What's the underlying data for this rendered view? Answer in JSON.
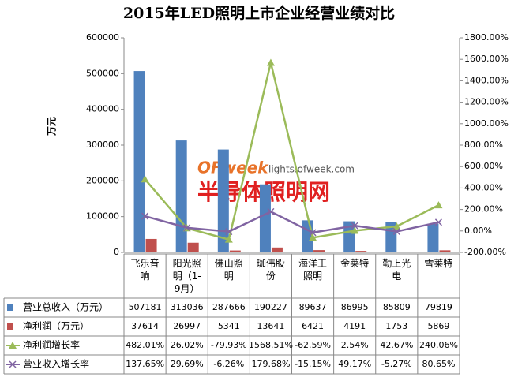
{
  "chart_data": {
    "type": "bar",
    "title": "2015年LED照明上市企业经营业绩对比",
    "y_label": "万元",
    "categories": [
      "飞乐音响",
      "阳光照明（1-9月）",
      "佛山照明",
      "珈伟股份",
      "海洋王照明",
      "金莱特",
      "勤上光电",
      "雪莱特"
    ],
    "series": [
      {
        "name": "营业总收入（万元）",
        "type": "bar",
        "color": "#4f81bd",
        "values": [
          507181,
          313036,
          287666,
          190227,
          89637,
          86995,
          85809,
          79819
        ]
      },
      {
        "name": "净利润（万元）",
        "type": "bar",
        "color": "#c0504d",
        "values": [
          37614,
          26997,
          5341,
          13641,
          6421,
          4191,
          1753,
          5869
        ]
      },
      {
        "name": "净利润增长率",
        "type": "line",
        "marker": "triangle",
        "axis": "y2",
        "color": "#9bbb59",
        "values": [
          482.01,
          26.02,
          -79.93,
          1568.51,
          -62.59,
          2.54,
          42.67,
          240.06
        ],
        "value_labels": [
          "482.01%",
          "26.02%",
          "-79.93%",
          "1568.51%",
          "-62.59%",
          "2.54%",
          "42.67%",
          "240.06%"
        ]
      },
      {
        "name": "营业收入增长率",
        "type": "line",
        "marker": "x",
        "axis": "y2",
        "color": "#8064a2",
        "values": [
          137.65,
          29.69,
          -6.26,
          179.68,
          -15.15,
          49.17,
          -5.27,
          80.65
        ],
        "value_labels": [
          "137.65%",
          "29.69%",
          "-6.26%",
          "179.68%",
          "-15.15%",
          "49.17%",
          "-5.27%",
          "80.65%"
        ]
      }
    ],
    "ylim": [
      0,
      600000
    ],
    "yticks": [
      0,
      100000,
      200000,
      300000,
      400000,
      500000,
      600000
    ],
    "y2lim": [
      -200,
      1800
    ],
    "y2ticks": [
      {
        "value": -200,
        "label": "-200.00%"
      },
      {
        "value": 0,
        "label": "0.00%"
      },
      {
        "value": 200,
        "label": "200.00%"
      },
      {
        "value": 400,
        "label": "400.00%"
      },
      {
        "value": 600,
        "label": "600.00%"
      },
      {
        "value": 800,
        "label": "800.00%"
      },
      {
        "value": 1000,
        "label": "1000.00%"
      },
      {
        "value": 1200,
        "label": "1200.00%"
      },
      {
        "value": 1400,
        "label": "1400.00%"
      },
      {
        "value": 1600,
        "label": "1600.00%"
      },
      {
        "value": 1800,
        "label": "1800.00%"
      }
    ],
    "grid": false,
    "watermark": {
      "brand": "OFweek",
      "site": "lights.ofweek.com",
      "name": "半导体照明网"
    }
  }
}
